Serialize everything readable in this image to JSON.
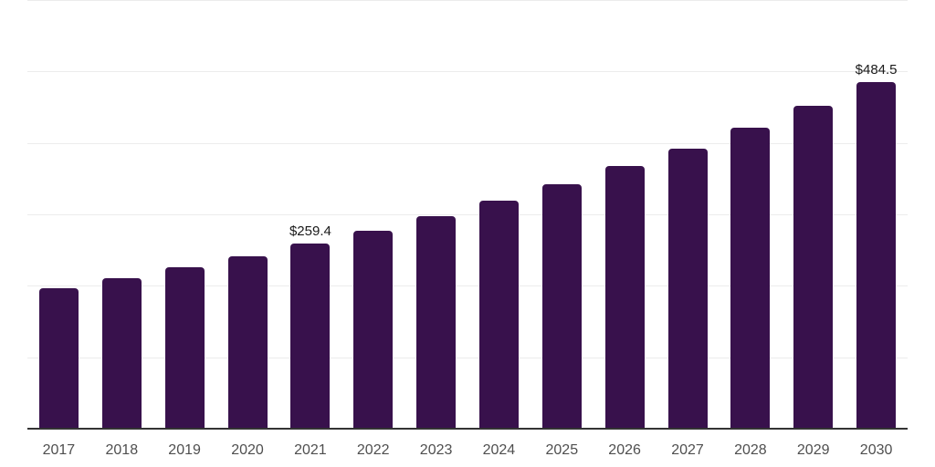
{
  "chart_data": {
    "type": "bar",
    "categories": [
      "2017",
      "2018",
      "2019",
      "2020",
      "2021",
      "2022",
      "2023",
      "2024",
      "2025",
      "2026",
      "2027",
      "2028",
      "2029",
      "2030"
    ],
    "values": [
      196.0,
      210.6,
      225.6,
      241.3,
      259.4,
      277.3,
      297.0,
      319.2,
      342.6,
      367.2,
      392.4,
      420.9,
      451.5,
      484.5
    ],
    "value_labels": {
      "2021": "$259.4",
      "2030": "$484.5"
    },
    "ylim": [
      0,
      600
    ],
    "ytick_interval": 100,
    "grid": "horizontal",
    "legend": "none",
    "y_axis_tick_labels_visible": false,
    "x_axis_tick_labels_visible": true
  },
  "colors": {
    "background": "#ffffff",
    "bar": "#38114c",
    "gridline": "#ececec",
    "axis_line": "#333333",
    "x_tick_label": "#4f4f4f",
    "value_label": "#1a1a1a"
  }
}
